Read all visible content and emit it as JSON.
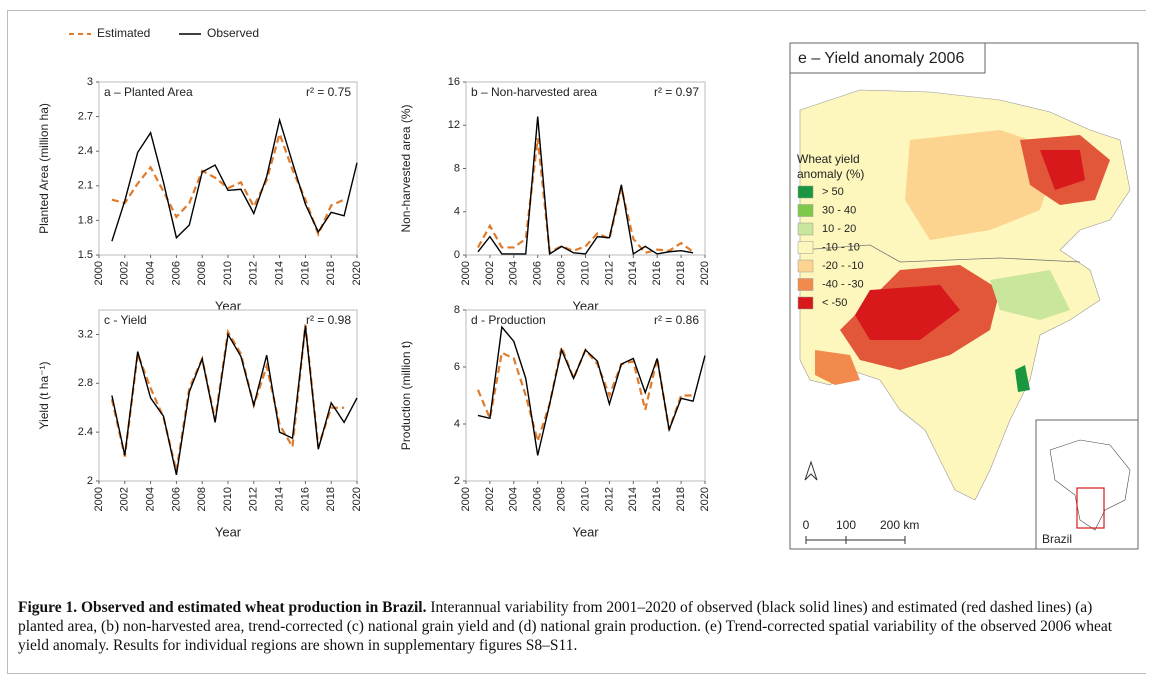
{
  "chart_data": [
    {
      "type": "line",
      "title": "a – Planted Area",
      "r2": "r² = 0.75",
      "xlabel": "Year",
      "ylabel": "Planted Area (million ha)",
      "x": [
        2001,
        2002,
        2003,
        2004,
        2005,
        2006,
        2007,
        2008,
        2009,
        2010,
        2011,
        2012,
        2013,
        2014,
        2015,
        2016,
        2017,
        2018,
        2019,
        2020
      ],
      "xlim": [
        2000,
        2020
      ],
      "xticks": [
        2000,
        2002,
        2004,
        2006,
        2008,
        2010,
        2012,
        2014,
        2016,
        2018,
        2020
      ],
      "ylim": [
        1.5,
        3
      ],
      "yticks": [
        1.5,
        1.8,
        2.1,
        2.4,
        2.7,
        3
      ],
      "legend": "top",
      "series": [
        {
          "name": "Estimated",
          "color": "#e07b2c",
          "dash": true,
          "values": [
            1.98,
            1.95,
            2.12,
            2.26,
            2.05,
            1.83,
            1.95,
            2.23,
            2.17,
            2.08,
            2.13,
            1.92,
            2.15,
            2.55,
            2.24,
            1.98,
            1.68,
            1.93,
            1.98,
            null
          ]
        },
        {
          "name": "Observed",
          "color": "#000000",
          "dash": false,
          "values": [
            1.62,
            1.97,
            2.39,
            2.56,
            2.13,
            1.65,
            1.76,
            2.22,
            2.28,
            2.06,
            2.07,
            1.86,
            2.18,
            2.67,
            2.3,
            1.94,
            1.7,
            1.87,
            1.84,
            2.3
          ]
        }
      ]
    },
    {
      "type": "line",
      "title": "b – Non-harvested area",
      "r2": "r² = 0.97",
      "xlabel": "Year",
      "ylabel": "Non-harvested area (%)",
      "x": [
        2001,
        2002,
        2003,
        2004,
        2005,
        2006,
        2007,
        2008,
        2009,
        2010,
        2011,
        2012,
        2013,
        2014,
        2015,
        2016,
        2017,
        2018,
        2019,
        2020
      ],
      "xlim": [
        2000,
        2020
      ],
      "xticks": [
        2000,
        2002,
        2004,
        2006,
        2008,
        2010,
        2012,
        2014,
        2016,
        2018,
        2020
      ],
      "ylim": [
        0,
        16
      ],
      "yticks": [
        0,
        4,
        8,
        12,
        16
      ],
      "series": [
        {
          "color": "#e07b2c",
          "dash": true,
          "values": [
            0.7,
            2.7,
            0.7,
            0.7,
            1.5,
            10.8,
            0.3,
            0.8,
            0.4,
            0.8,
            2.0,
            1.5,
            6.2,
            1.5,
            0.2,
            0.5,
            0.4,
            1.1,
            0.3,
            null
          ]
        },
        {
          "color": "#000000",
          "dash": false,
          "values": [
            0.3,
            1.7,
            0.1,
            0.1,
            0.1,
            12.8,
            0.1,
            0.8,
            0.2,
            0.1,
            1.7,
            1.6,
            6.5,
            0.1,
            0.8,
            0.1,
            0.3,
            0.4,
            0.2,
            null
          ]
        }
      ]
    },
    {
      "type": "line",
      "title": "c - Yield",
      "r2": "r² = 0.98",
      "xlabel": "Year",
      "ylabel": "Yield (t ha⁻¹)",
      "x": [
        2001,
        2002,
        2003,
        2004,
        2005,
        2006,
        2007,
        2008,
        2009,
        2010,
        2011,
        2012,
        2013,
        2014,
        2015,
        2016,
        2017,
        2018,
        2019,
        2020
      ],
      "xlim": [
        2000,
        2020
      ],
      "xticks": [
        2000,
        2002,
        2004,
        2006,
        2008,
        2010,
        2012,
        2014,
        2016,
        2018,
        2020
      ],
      "ylim": [
        2,
        3.4
      ],
      "yticks": [
        2,
        2.4,
        2.8,
        3.2
      ],
      "series": [
        {
          "color": "#e07b2c",
          "dash": true,
          "values": [
            2.67,
            2.2,
            3.04,
            2.76,
            2.52,
            2.08,
            2.76,
            3.0,
            2.5,
            3.22,
            3.04,
            2.62,
            2.94,
            2.46,
            2.28,
            3.28,
            2.28,
            2.6,
            2.6,
            null
          ]
        },
        {
          "color": "#000000",
          "dash": false,
          "values": [
            2.7,
            2.21,
            3.06,
            2.68,
            2.53,
            2.05,
            2.73,
            3.0,
            2.48,
            3.2,
            3.02,
            2.62,
            3.03,
            2.4,
            2.35,
            3.27,
            2.26,
            2.64,
            2.48,
            2.68
          ]
        }
      ]
    },
    {
      "type": "line",
      "title": "d - Production",
      "r2": "r² = 0.86",
      "xlabel": "Year",
      "ylabel": "Production (million t)",
      "x": [
        2001,
        2002,
        2003,
        2004,
        2005,
        2006,
        2007,
        2008,
        2009,
        2010,
        2011,
        2012,
        2013,
        2014,
        2015,
        2016,
        2017,
        2018,
        2019,
        2020
      ],
      "xlim": [
        2000,
        2020
      ],
      "xticks": [
        2000,
        2002,
        2004,
        2006,
        2008,
        2010,
        2012,
        2014,
        2016,
        2018,
        2020
      ],
      "ylim": [
        2,
        8
      ],
      "yticks": [
        2,
        4,
        6,
        8
      ],
      "series": [
        {
          "color": "#e07b2c",
          "dash": true,
          "values": [
            5.2,
            4.2,
            6.5,
            6.3,
            5.0,
            3.4,
            4.7,
            6.7,
            5.6,
            6.6,
            6.1,
            5.0,
            6.1,
            6.2,
            4.5,
            6.3,
            3.8,
            5.0,
            5.0,
            null
          ]
        },
        {
          "color": "#000000",
          "dash": false,
          "values": [
            4.3,
            4.2,
            7.4,
            6.9,
            5.6,
            2.9,
            4.7,
            6.6,
            5.6,
            6.6,
            6.2,
            4.7,
            6.1,
            6.3,
            5.1,
            6.3,
            3.8,
            4.9,
            4.8,
            6.4
          ]
        }
      ]
    }
  ],
  "map": {
    "title": "e – Yield anomaly 2006",
    "legend_title": [
      "Wheat yield",
      "anomaly (%)"
    ],
    "legend": [
      {
        "label": "> 50",
        "color": "#1a9641"
      },
      {
        "label": "30 - 40",
        "color": "#7fc94a"
      },
      {
        "label": "10 - 20",
        "color": "#c9e69c"
      },
      {
        "label": "-10 - 10",
        "color": "#fdf7bd"
      },
      {
        "label": "-20 - -10",
        "color": "#fcd38f"
      },
      {
        "label": "-40 - -30",
        "color": "#f28a4d"
      },
      {
        "label": "< -50",
        "color": "#d7191c"
      }
    ],
    "scale": [
      "0",
      "100",
      "200 km"
    ],
    "inset": "Brazil"
  },
  "caption": {
    "bold": "Figure 1. Observed and estimated wheat production in Brazil.",
    "text": "Interannual variability from 2001–2020 of observed (black solid lines) and estimated (red dashed lines) (a) planted area, (b) non-harvested area, trend-corrected (c) national grain yield and (d) national grain production. (e) Trend-corrected spatial variability of the observed 2006 wheat yield anomaly. Results for individual regions are shown in supplementary figures S8–S11."
  }
}
